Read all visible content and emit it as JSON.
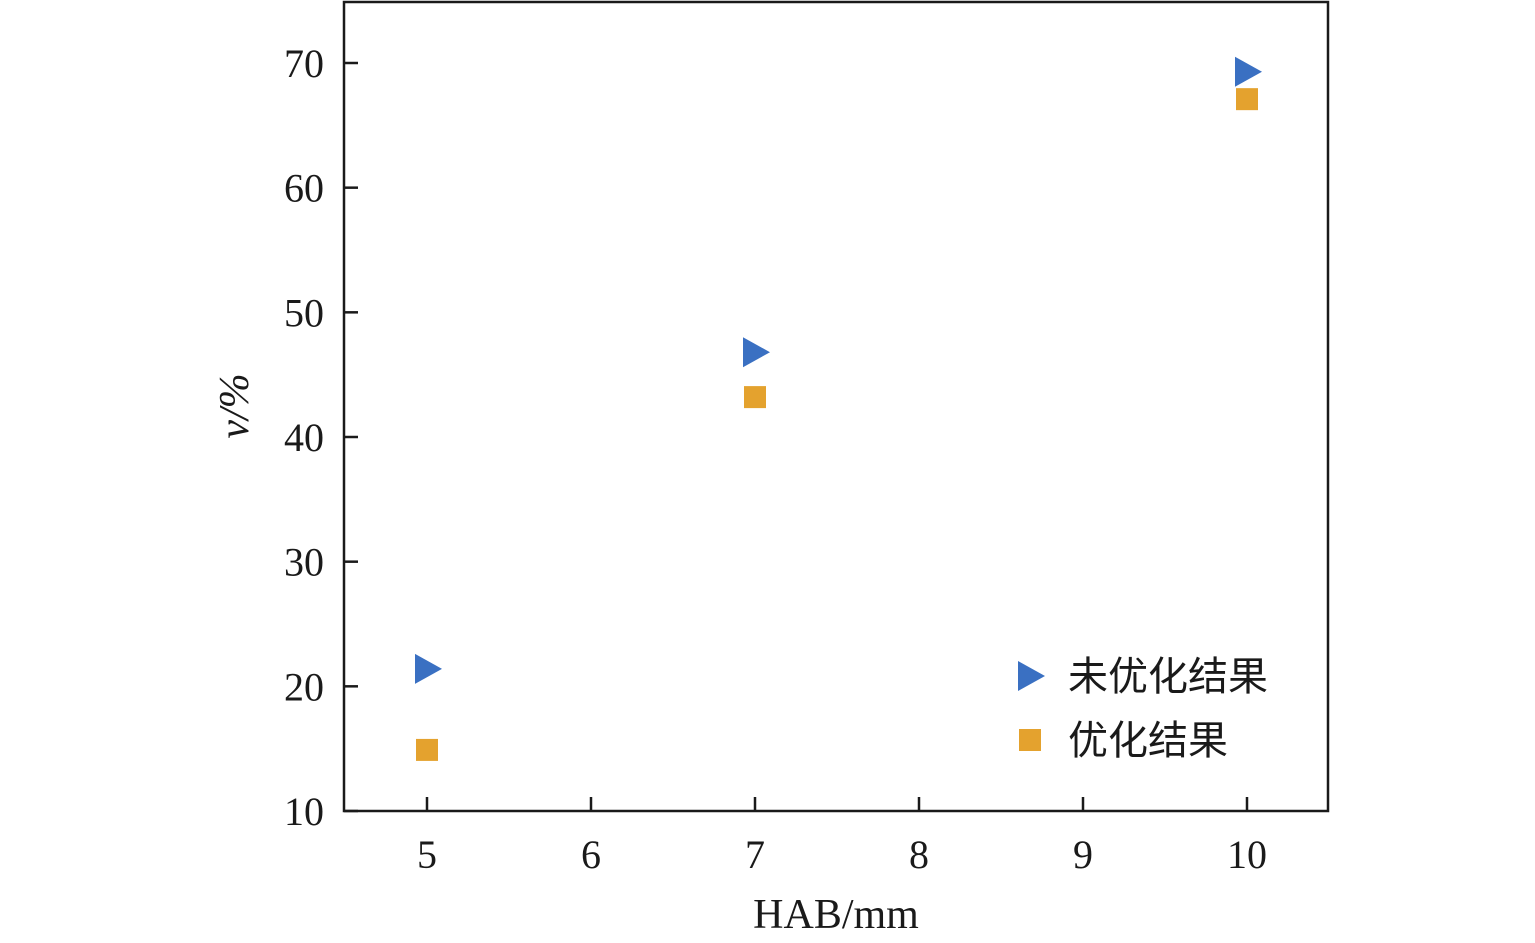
{
  "chart_data": {
    "type": "scatter",
    "xlabel": "HAB/mm",
    "ylabel": "v/%",
    "xlim": [
      4.5,
      10.5
    ],
    "ylim": [
      10,
      75
    ],
    "x_ticks": [
      5,
      6,
      7,
      8,
      9,
      10
    ],
    "y_ticks": [
      10,
      20,
      30,
      40,
      50,
      60,
      70
    ],
    "grid": false,
    "legend_position": "bottom-right",
    "series": [
      {
        "name": "未优化结果",
        "marker": "triangle-right",
        "color": "#3a70c2",
        "points": [
          {
            "x": 5,
            "y": 21.4
          },
          {
            "x": 7,
            "y": 46.8
          },
          {
            "x": 10,
            "y": 69.3
          }
        ]
      },
      {
        "name": "优化结果",
        "marker": "square",
        "color": "#e4a22e",
        "points": [
          {
            "x": 5,
            "y": 14.9
          },
          {
            "x": 7,
            "y": 43.2
          },
          {
            "x": 10,
            "y": 67.1
          }
        ]
      }
    ]
  }
}
